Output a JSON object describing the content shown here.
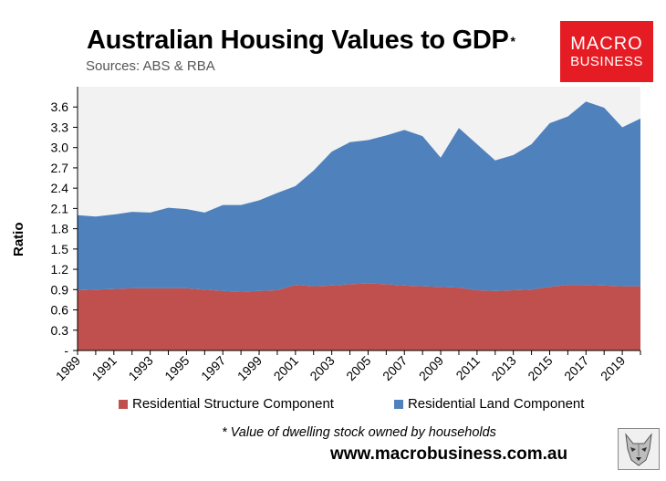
{
  "title": "Australian Housing Values to GDP",
  "title_mark": "*",
  "subtitle": "Sources: ABS & RBA",
  "logo": {
    "line1": "MACRO",
    "line2": "BUSINESS",
    "color": "#e51c23"
  },
  "footnote": "* Value of dwelling stock owned by households",
  "website": "www.macrobusiness.com.au",
  "watermark_icon": "wolf-icon",
  "chart_data": {
    "type": "area",
    "stacked": true,
    "ylabel": "Ratio",
    "xlabel": "",
    "ylim": [
      0,
      3.9
    ],
    "yticks": [
      0,
      0.3,
      0.6,
      0.9,
      1.2,
      1.5,
      1.8,
      2.1,
      2.4,
      2.7,
      3.0,
      3.3,
      3.6
    ],
    "ytick_labels": [
      "-",
      "0.3",
      "0.6",
      "0.9",
      "1.2",
      "1.5",
      "1.8",
      "2.1",
      "2.4",
      "2.7",
      "3.0",
      "3.3",
      "3.6"
    ],
    "xtick_labels": [
      "1989",
      "1991",
      "1993",
      "1995",
      "1997",
      "1999",
      "2001",
      "2003",
      "2005",
      "2007",
      "2009",
      "2011",
      "2013",
      "2015",
      "2017",
      "2019"
    ],
    "x": [
      1989,
      1990,
      1991,
      1992,
      1993,
      1994,
      1995,
      1996,
      1997,
      1998,
      1999,
      2000,
      2001,
      2002,
      2003,
      2004,
      2005,
      2006,
      2007,
      2008,
      2009,
      2010,
      2011,
      2012,
      2013,
      2014,
      2015,
      2016,
      2017,
      2018,
      2019,
      2020
    ],
    "grid": false,
    "plot_background": "#f2f2f2",
    "legend_position": "bottom",
    "series": [
      {
        "name": "Residential Structure Component",
        "color": "#c0504d",
        "values": [
          0.89,
          0.9,
          0.91,
          0.92,
          0.92,
          0.92,
          0.92,
          0.9,
          0.88,
          0.87,
          0.88,
          0.89,
          0.97,
          0.95,
          0.96,
          0.98,
          0.99,
          0.98,
          0.96,
          0.95,
          0.94,
          0.93,
          0.89,
          0.88,
          0.89,
          0.9,
          0.94,
          0.97,
          0.97,
          0.96,
          0.95,
          0.95
        ]
      },
      {
        "name": "Residential Land Component",
        "color": "#4f81bd",
        "values": [
          1.11,
          1.08,
          1.1,
          1.13,
          1.12,
          1.19,
          1.17,
          1.14,
          1.27,
          1.28,
          1.34,
          1.44,
          1.46,
          1.71,
          1.98,
          2.1,
          2.12,
          2.2,
          2.3,
          2.22,
          1.91,
          2.36,
          2.16,
          1.93,
          2.0,
          2.15,
          2.42,
          2.49,
          2.71,
          2.63,
          2.35,
          2.48
        ]
      }
    ]
  }
}
